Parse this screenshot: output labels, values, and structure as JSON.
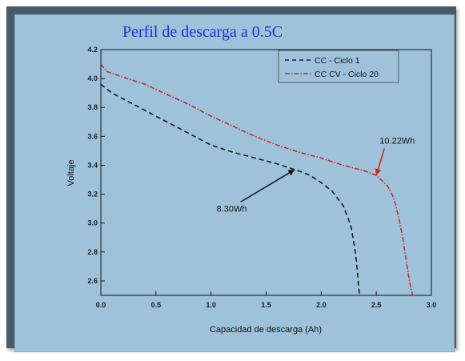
{
  "chart_data": {
    "type": "line",
    "title": "Perfil de descarga a 0.5C",
    "xlabel": "Capacidad de descarga (Ah)",
    "ylabel": "Voltaje",
    "xlim": [
      0.0,
      3.0
    ],
    "ylim": [
      2.5,
      4.2
    ],
    "x_ticks": [
      "0.0",
      "0.5",
      "1.0",
      "1.5",
      "2.0",
      "2.5",
      "3.0"
    ],
    "y_ticks": [
      "2.6",
      "2.8",
      "3.0",
      "3.2",
      "3.4",
      "3.6",
      "3.8",
      "4.0",
      "4.2"
    ],
    "legend_position": "top-right",
    "grid": false,
    "series": [
      {
        "name": "CC - Ciclo 1",
        "color": "#1a1a1a",
        "style": "dashed",
        "x": [
          0.0,
          0.1,
          0.3,
          0.5,
          0.7,
          0.9,
          1.0,
          1.2,
          1.4,
          1.6,
          1.8,
          1.9,
          2.0,
          2.1,
          2.2,
          2.27,
          2.31,
          2.33,
          2.34,
          2.35
        ],
        "y": [
          3.96,
          3.9,
          3.82,
          3.74,
          3.66,
          3.58,
          3.54,
          3.49,
          3.45,
          3.41,
          3.36,
          3.33,
          3.28,
          3.22,
          3.12,
          2.98,
          2.8,
          2.65,
          2.55,
          2.5
        ]
      },
      {
        "name": "CC CV - Ciclo 20",
        "color": "#cc2a2a",
        "style": "dash-dot",
        "x": [
          0.0,
          0.05,
          0.2,
          0.4,
          0.6,
          0.8,
          1.0,
          1.2,
          1.4,
          1.6,
          1.8,
          2.0,
          2.2,
          2.4,
          2.5,
          2.6,
          2.66,
          2.7,
          2.74,
          2.77,
          2.8,
          2.83
        ],
        "y": [
          4.1,
          4.05,
          4.01,
          3.96,
          3.89,
          3.82,
          3.74,
          3.67,
          3.6,
          3.54,
          3.49,
          3.45,
          3.4,
          3.36,
          3.33,
          3.26,
          3.17,
          3.05,
          2.9,
          2.75,
          2.6,
          2.5
        ]
      }
    ],
    "annotations": [
      {
        "text": "8.30Wh",
        "x": 1.05,
        "y": 3.08,
        "arrow_to_x": 1.76,
        "arrow_to_y": 3.37,
        "color": "#1a1a1a"
      },
      {
        "text": "10.22Wh",
        "x": 2.53,
        "y": 3.55,
        "arrow_to_x": 2.5,
        "arrow_to_y": 3.33,
        "color": "#cc2a2a"
      }
    ]
  }
}
